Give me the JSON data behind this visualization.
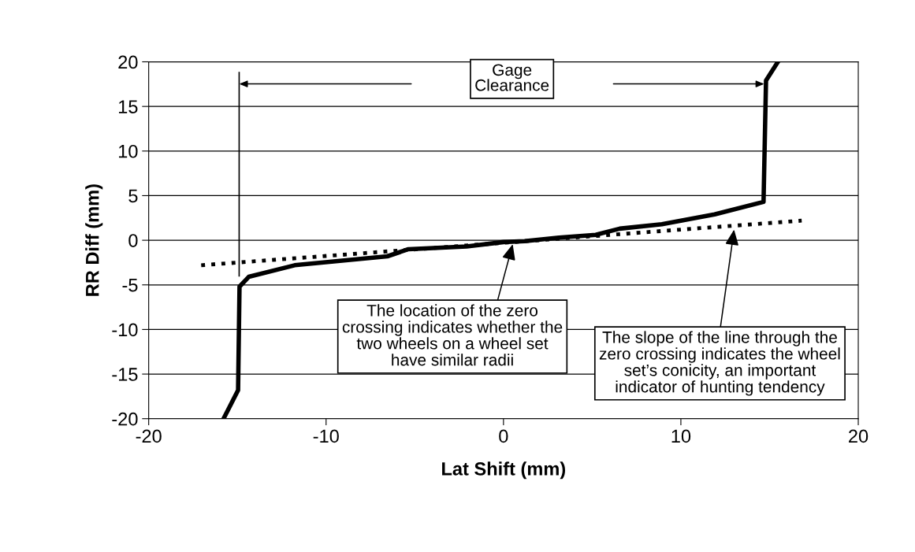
{
  "chart_data": {
    "type": "line",
    "xlabel": "Lat Shift (mm)",
    "ylabel": "RR Diff (mm)",
    "xlim": [
      -20,
      20
    ],
    "xticks": [
      -20,
      -10,
      0,
      10,
      20
    ],
    "ylim": [
      -20,
      20
    ],
    "yticks": [
      -20,
      -15,
      -10,
      -5,
      0,
      5,
      10,
      15,
      20
    ],
    "grid": "y",
    "legend": false,
    "marker": "none",
    "series": [
      {
        "color": "#000000",
        "line_style": "solid",
        "x": [
          -15.78,
          -14.96,
          -14.88,
          -14.36,
          -11.77,
          -6.55,
          -5.36,
          -2.08,
          0,
          1.19,
          3.13,
          5.2,
          6.55,
          8.93,
          11.9,
          14.66,
          14.8,
          15.47
        ],
        "values": [
          -20,
          -16.8,
          -5.2,
          -4.1,
          -2.8,
          -1.8,
          -1.0,
          -0.7,
          -0.2,
          -0.1,
          0.3,
          0.6,
          1.3,
          1.8,
          2.9,
          4.3,
          17.9,
          20
        ]
      },
      {
        "color": "#000000",
        "line_style": "dotted",
        "x": [
          -17.04,
          16.81
        ],
        "values": [
          -2.8,
          2.2
        ]
      }
    ],
    "ref_lines": [
      {
        "axis": "x",
        "value": -14.9,
        "color": "#000000"
      }
    ],
    "annotations": [
      "Gage\nClearance",
      {
        "text": "The location of the zero\ncrossing indicates whether the\ntwo wheels on a wheel set\nhave similar radii",
        "x": 0.52,
        "y": -0.44
      },
      {
        "text": "The slope of the line through the\nzero crossing indicates the wheel\nset’s conicity, an important\nindicator of hunting tendency",
        "x": 13.0,
        "y": 1.2
      }
    ]
  }
}
